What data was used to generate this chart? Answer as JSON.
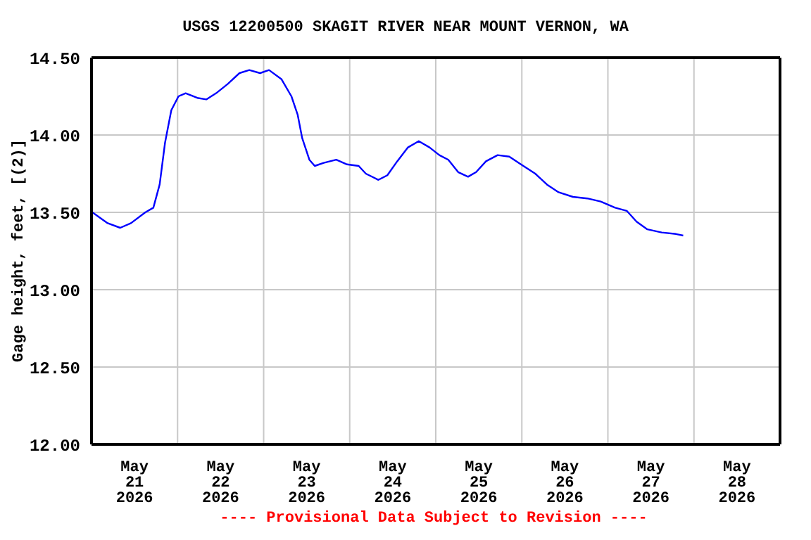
{
  "chart_data": {
    "type": "line",
    "title": "USGS 12200500 SKAGIT RIVER NEAR MOUNT VERNON, WA",
    "ylabel": "Gage height, feet, [(2)]",
    "annotations": [
      "---- Provisional Data Subject to Revision ----"
    ],
    "x": [
      "2026-05-21T00:15",
      "2026-05-21T04:30",
      "2026-05-21T08:00",
      "2026-05-21T11:00",
      "2026-05-21T15:00",
      "2026-05-21T17:15",
      "2026-05-21T19:00",
      "2026-05-21T20:30",
      "2026-05-21T22:15",
      "2026-05-22T00:15",
      "2026-05-22T02:15",
      "2026-05-22T05:30",
      "2026-05-22T08:00",
      "2026-05-22T10:45",
      "2026-05-22T14:00",
      "2026-05-22T17:15",
      "2026-05-22T20:00",
      "2026-05-22T23:00",
      "2026-05-23T01:30",
      "2026-05-23T05:00",
      "2026-05-23T07:45",
      "2026-05-23T09:30",
      "2026-05-23T10:45",
      "2026-05-23T12:45",
      "2026-05-23T14:15",
      "2026-05-23T16:45",
      "2026-05-23T20:15",
      "2026-05-23T23:15",
      "2026-05-24T02:30",
      "2026-05-24T04:30",
      "2026-05-24T08:00",
      "2026-05-24T10:30",
      "2026-05-24T13:15",
      "2026-05-24T16:15",
      "2026-05-24T19:15",
      "2026-05-24T22:15",
      "2026-05-25T01:00",
      "2026-05-25T03:30",
      "2026-05-25T06:15",
      "2026-05-25T09:00",
      "2026-05-25T11:15",
      "2026-05-25T14:00",
      "2026-05-25T17:15",
      "2026-05-25T20:30",
      "2026-05-25T23:45",
      "2026-05-26T03:45",
      "2026-05-26T07:00",
      "2026-05-26T10:15",
      "2026-05-26T14:15",
      "2026-05-26T18:15",
      "2026-05-26T22:00",
      "2026-05-27T02:00",
      "2026-05-27T05:15",
      "2026-05-27T08:00",
      "2026-05-27T11:00",
      "2026-05-27T15:00",
      "2026-05-27T19:00",
      "2026-05-27T21:00"
    ],
    "series": [
      {
        "color": "#0000ff",
        "values": [
          13.5,
          13.43,
          13.4,
          13.43,
          13.5,
          13.53,
          13.68,
          13.95,
          14.16,
          14.25,
          14.27,
          14.24,
          14.23,
          14.27,
          14.33,
          14.4,
          14.42,
          14.4,
          14.42,
          14.36,
          14.25,
          14.13,
          13.98,
          13.84,
          13.8,
          13.82,
          13.84,
          13.81,
          13.8,
          13.75,
          13.71,
          13.74,
          13.83,
          13.92,
          13.96,
          13.92,
          13.87,
          13.84,
          13.76,
          13.73,
          13.76,
          13.83,
          13.87,
          13.86,
          13.81,
          13.75,
          13.68,
          13.63,
          13.6,
          13.59,
          13.57,
          13.53,
          13.51,
          13.44,
          13.39,
          13.37,
          13.36,
          13.35
        ]
      }
    ],
    "xlim": [
      "2026-05-21T00:00",
      "2026-05-29T00:00"
    ],
    "xticks": [
      {
        "value": "2026-05-21T00:00",
        "label": null
      },
      {
        "value": "2026-05-21T12:00",
        "label": "May\n21\n2026"
      },
      {
        "value": "2026-05-22T00:00",
        "label": null
      },
      {
        "value": "2026-05-22T12:00",
        "label": "May\n22\n2026"
      },
      {
        "value": "2026-05-23T00:00",
        "label": null
      },
      {
        "value": "2026-05-23T12:00",
        "label": "May\n23\n2026"
      },
      {
        "value": "2026-05-24T00:00",
        "label": null
      },
      {
        "value": "2026-05-24T12:00",
        "label": "May\n24\n2026"
      },
      {
        "value": "2026-05-25T00:00",
        "label": null
      },
      {
        "value": "2026-05-25T12:00",
        "label": "May\n25\n2026"
      },
      {
        "value": "2026-05-26T00:00",
        "label": null
      },
      {
        "value": "2026-05-26T12:00",
        "label": "May\n26\n2026"
      },
      {
        "value": "2026-05-27T00:00",
        "label": null
      },
      {
        "value": "2026-05-27T12:00",
        "label": "May\n27\n2026"
      },
      {
        "value": "2026-05-28T00:00",
        "label": null
      },
      {
        "value": "2026-05-28T12:00",
        "label": "May\n28\n2026"
      },
      {
        "value": "2026-05-29T00:00",
        "label": null
      }
    ],
    "ylim": [
      12,
      14.5
    ],
    "yticks": [
      {
        "value": 12,
        "label": "12.00"
      },
      {
        "value": 12.5,
        "label": "12.50"
      },
      {
        "value": 13,
        "label": "13.00"
      },
      {
        "value": 13.5,
        "label": "13.50"
      },
      {
        "value": 14,
        "label": "14.00"
      },
      {
        "value": 14.5,
        "label": "14.50"
      }
    ],
    "grid": true,
    "marker": "none",
    "line_style": "solid"
  }
}
